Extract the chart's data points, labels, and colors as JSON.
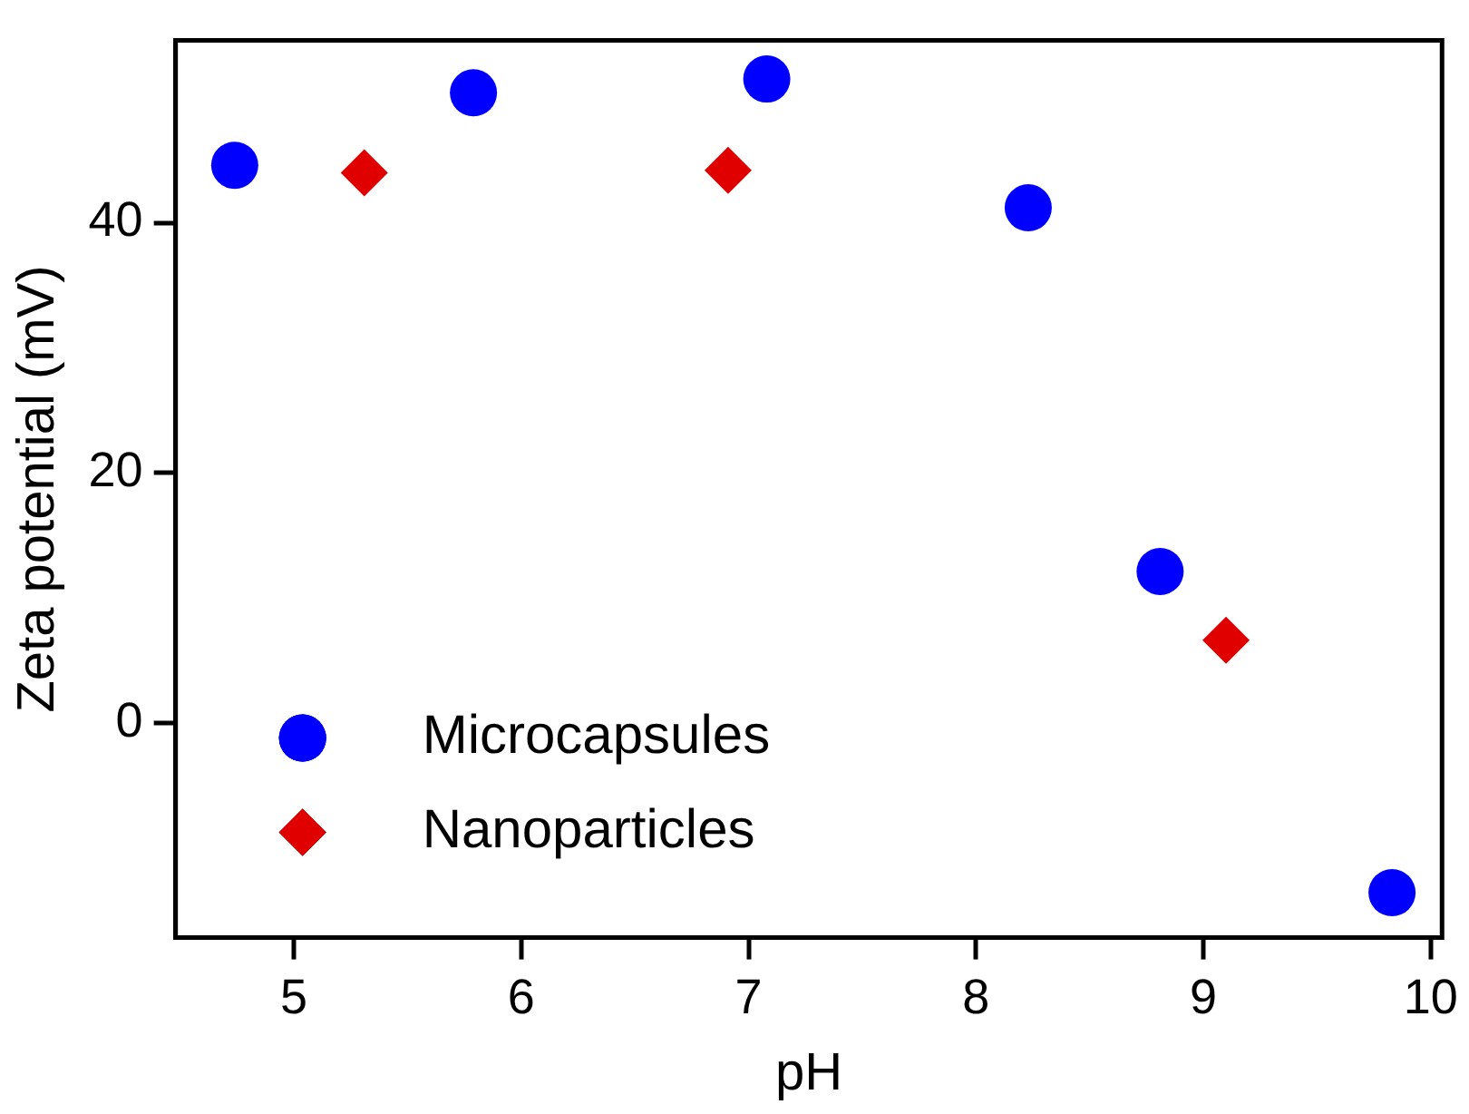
{
  "chart_data": {
    "type": "scatter",
    "xlabel": "pH",
    "ylabel": "Zeta potential (mV)",
    "xlim": [
      4.48,
      10.05
    ],
    "xticks": [
      5,
      6,
      7,
      8,
      9,
      10
    ],
    "ylim": [
      -17.2,
      54.6
    ],
    "yticks": [
      0,
      20,
      40
    ],
    "grid": false,
    "legend": "bottom left",
    "series": [
      {
        "name": "Microcapsules",
        "color": "#0000ff",
        "marker": "circle",
        "x": [
          4.74,
          5.79,
          7.08,
          8.23,
          8.81,
          9.83
        ],
        "values": [
          44.6,
          50.4,
          51.5,
          41.2,
          12.1,
          -13.6
        ]
      },
      {
        "name": "Nanoparticles",
        "color": "#e00000",
        "marker": "diamond",
        "x": [
          5.31,
          6.91,
          9.1
        ],
        "values": [
          44.0,
          44.2,
          6.6
        ]
      }
    ]
  }
}
